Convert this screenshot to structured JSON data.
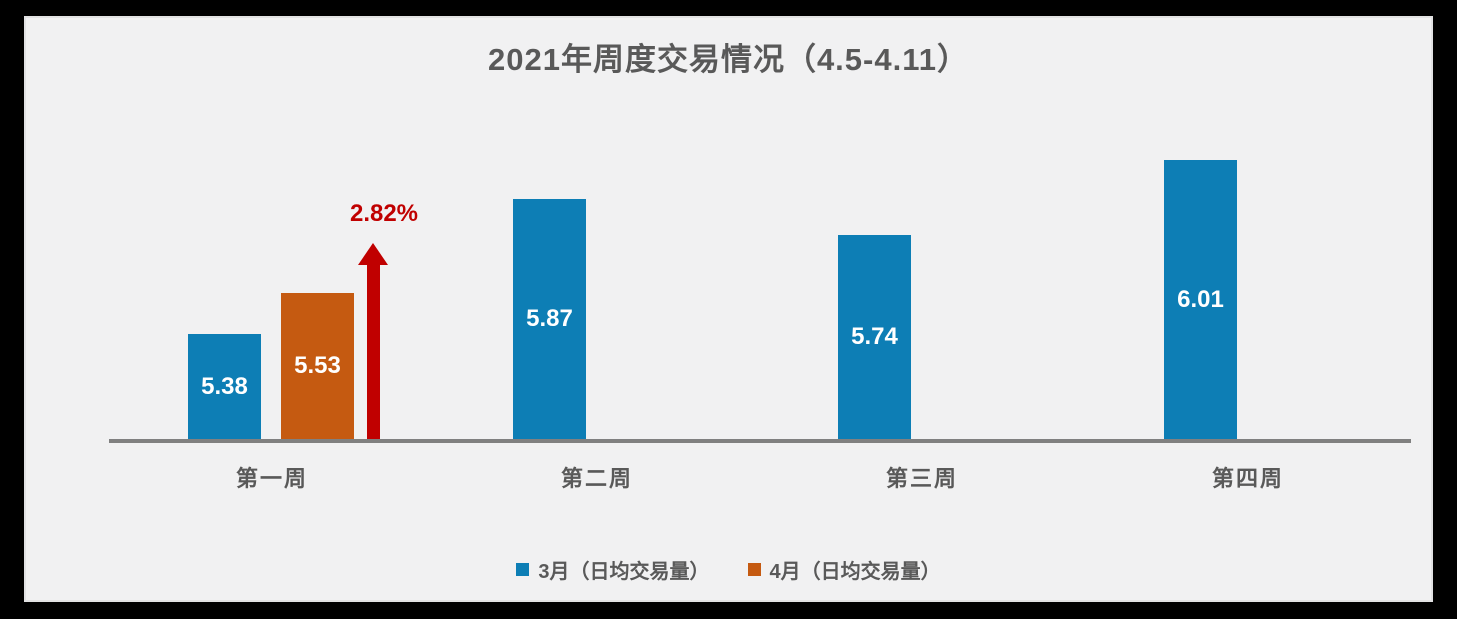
{
  "page": {
    "background_color": "#000000",
    "card_background_color": "#f1f1f2",
    "card_border_color": "#e2e2e3"
  },
  "chart_data": {
    "type": "bar",
    "title": "2021年周度交易情况（4.5-4.11）",
    "title_color": "#595959",
    "categories": [
      "第一周",
      "第二周",
      "第三周",
      "第四周"
    ],
    "series": [
      {
        "name": "3月（日均交易量）",
        "color": "#0d7eb5",
        "values": [
          5.38,
          5.87,
          5.74,
          6.01
        ]
      },
      {
        "name": "4月（日均交易量）",
        "color": "#c55a11",
        "values": [
          5.53,
          null,
          null,
          null
        ]
      }
    ],
    "value_label_color": "#ffffff",
    "value_label_decimals": 2,
    "value_label_position": "center-inside",
    "annotation": {
      "text": "2.82%",
      "color": "#c00000",
      "shape": "up-arrow",
      "category_index": 0
    },
    "axis": {
      "baseline_color": "#808080",
      "ylim": [
        5.0,
        6.6
      ],
      "y_axis_visible": false,
      "grid": false
    },
    "category_label_color": "#595959",
    "legend_position": "bottom"
  }
}
